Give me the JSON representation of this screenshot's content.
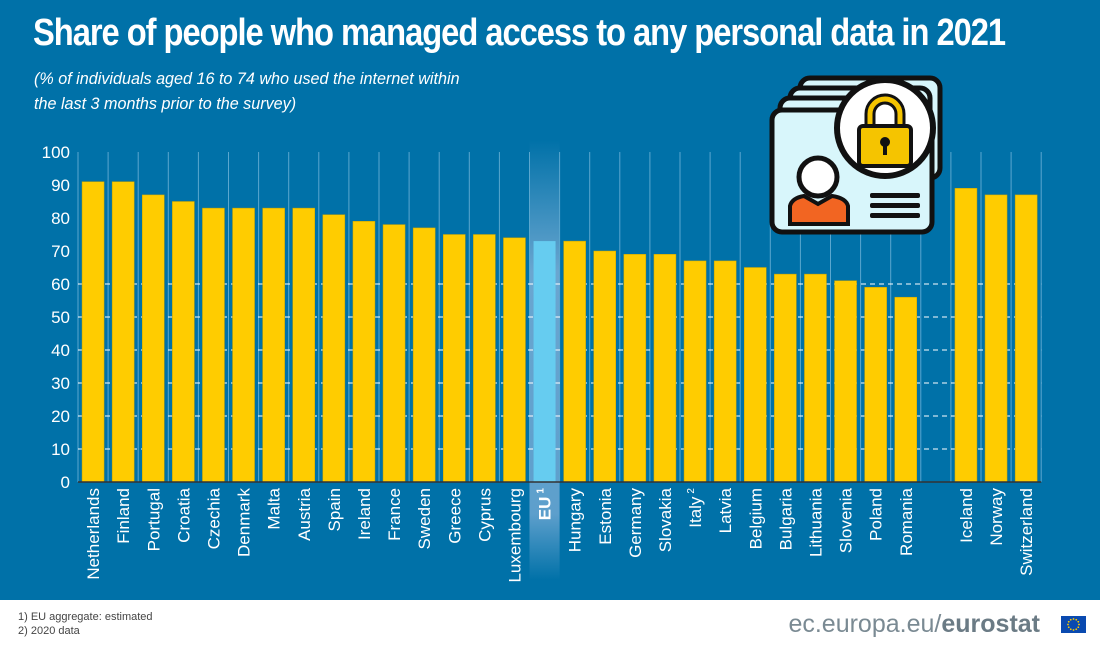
{
  "title": "Share of people who managed access to any personal data in 2021",
  "subtitle_line1": "(% of individuals aged 16 to 74 who used the internet within",
  "subtitle_line2": "the last 3 months prior to the survey)",
  "footnotes": [
    "1) EU aggregate: estimated",
    "2) 2020 data"
  ],
  "brand": {
    "prefix": "ec.europa.eu/",
    "name": "eurostat"
  },
  "icon": "id-card-with-padlock-icon",
  "colors": {
    "background": "#0071a8",
    "bar": "#ffcc00",
    "eu_bar": "#66ccf0",
    "text": "#ffffff"
  },
  "chart_data": {
    "type": "bar",
    "title": "Share of people who managed access to any personal data in 2021",
    "xlabel": "",
    "ylabel": "% of individuals aged 16 to 74 who used the internet within the last 3 months",
    "ylim": [
      0,
      100
    ],
    "yticks": [
      0,
      10,
      20,
      30,
      40,
      50,
      60,
      70,
      80,
      90,
      100
    ],
    "grid": true,
    "legend": "none",
    "categories": [
      "Netherlands",
      "Finland",
      "Portugal",
      "Croatia",
      "Czechia",
      "Denmark",
      "Malta",
      "Austria",
      "Spain",
      "Ireland",
      "France",
      "Sweden",
      "Greece",
      "Cyprus",
      "Luxembourg",
      "EU",
      "Hungary",
      "Estonia",
      "Germany",
      "Slovakia",
      "Italy",
      "Latvia",
      "Belgium",
      "Bulgaria",
      "Lithuania",
      "Slovenia",
      "Poland",
      "Romania",
      "",
      "Iceland",
      "Norway",
      "Switzerland"
    ],
    "superscripts": [
      "",
      "",
      "",
      "",
      "",
      "",
      "",
      "",
      "",
      "",
      "",
      "",
      "",
      "",
      "",
      "1",
      "",
      "",
      "",
      "",
      "2",
      "",
      "",
      "",
      "",
      "",
      "",
      "",
      "",
      "",
      "",
      ""
    ],
    "values": [
      91,
      91,
      87,
      85,
      83,
      83,
      83,
      83,
      81,
      79,
      78,
      77,
      75,
      75,
      74,
      73,
      73,
      70,
      69,
      69,
      67,
      67,
      65,
      63,
      63,
      61,
      59,
      56,
      null,
      89,
      87,
      87
    ],
    "highlight": "EU"
  }
}
